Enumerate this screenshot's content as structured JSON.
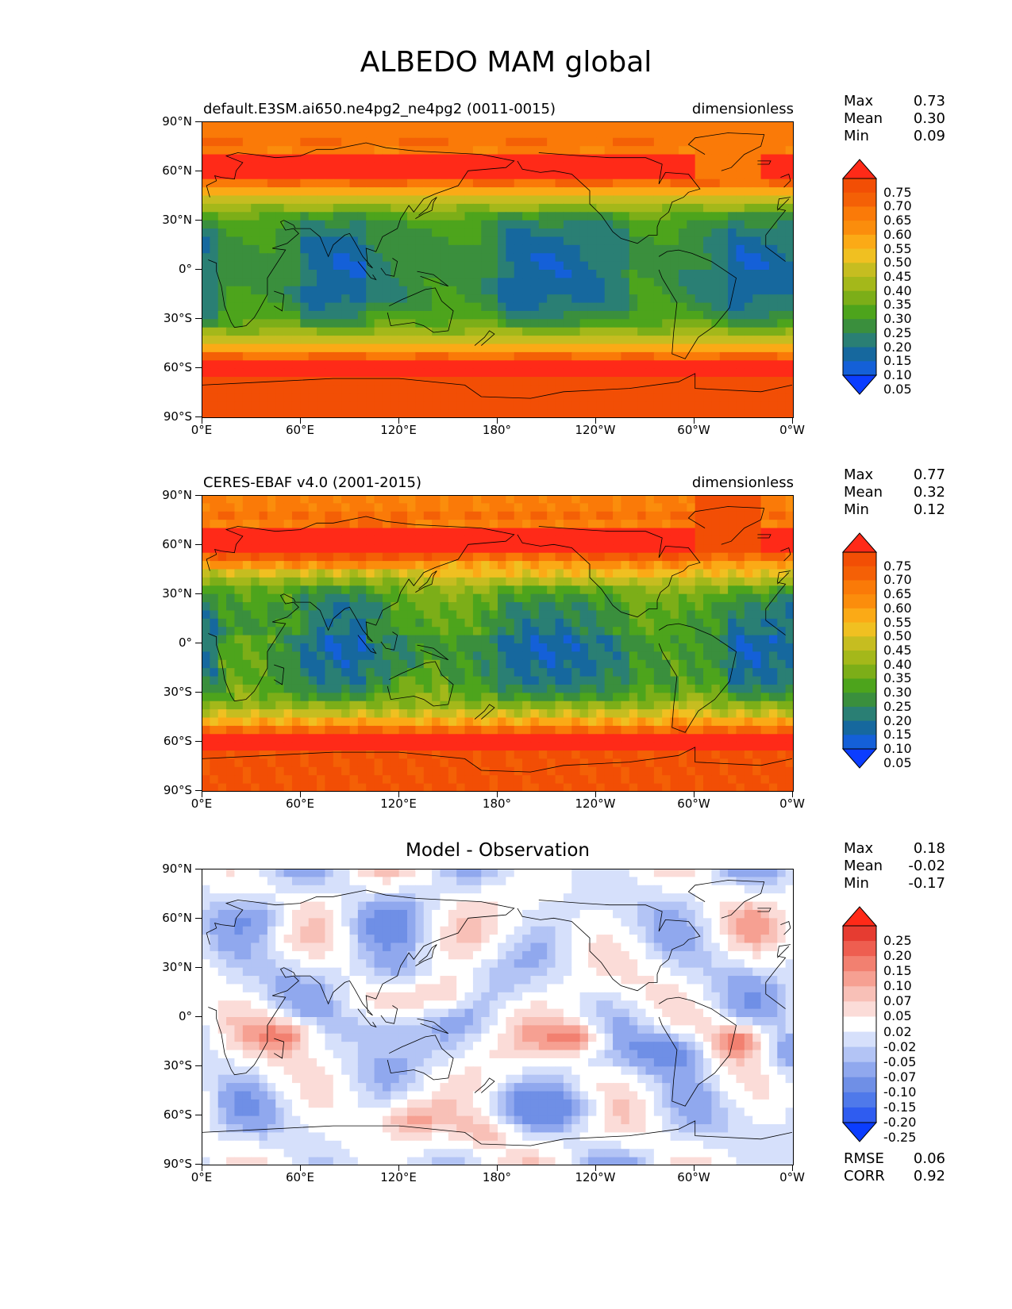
{
  "page": {
    "title": "ALBEDO MAM global"
  },
  "axes": {
    "lat_labels": [
      "90°N",
      "60°N",
      "30°N",
      "0°",
      "30°S",
      "60°S",
      "90°S"
    ],
    "lon_labels": [
      "0°E",
      "60°E",
      "120°E",
      "180°",
      "120°W",
      "60°W",
      "0°W"
    ]
  },
  "colors": {
    "albedo_levels": [
      "#0b3dff",
      "#1460d8",
      "#16689e",
      "#2a7f74",
      "#3a8f3d",
      "#4da41c",
      "#7cae18",
      "#a4b81a",
      "#c6bd20",
      "#f0c021",
      "#fbaa16",
      "#fb8d0c",
      "#fa7a08",
      "#f46006",
      "#f24e05",
      "#ff2a18"
    ],
    "diff_levels": [
      "#0b3dff",
      "#2f5cf0",
      "#4f79ea",
      "#6f8fe6",
      "#90a8ee",
      "#b3c4f5",
      "#d6e0fb",
      "#ffffff",
      "#fbdcd8",
      "#f8c0b7",
      "#f6a092",
      "#f28070",
      "#ee5e50",
      "#e63c31",
      "#ff2a18"
    ],
    "coast": "#000000"
  },
  "panels": [
    {
      "id": "model",
      "left_title": "default.E3SM.ai650.ne4pg2_ne4pg2 (0011-0015)",
      "right_title": "dimensionless",
      "center_title": "",
      "stats": [
        {
          "label": "Max",
          "value": "0.73"
        },
        {
          "label": "Mean",
          "value": "0.30"
        },
        {
          "label": "Min",
          "value": "0.09"
        }
      ],
      "colorbar": {
        "type": "albedo",
        "labels": [
          "0.75",
          "0.70",
          "0.65",
          "0.60",
          "0.55",
          "0.50",
          "0.45",
          "0.40",
          "0.35",
          "0.30",
          "0.25",
          "0.20",
          "0.15",
          "0.10",
          "0.05"
        ]
      }
    },
    {
      "id": "obs",
      "left_title": "CERES-EBAF v4.0 (2001-2015)",
      "right_title": "dimensionless",
      "center_title": "",
      "stats": [
        {
          "label": "Max",
          "value": "0.77"
        },
        {
          "label": "Mean",
          "value": "0.32"
        },
        {
          "label": "Min",
          "value": "0.12"
        }
      ],
      "colorbar": {
        "type": "albedo",
        "labels": [
          "0.75",
          "0.70",
          "0.65",
          "0.60",
          "0.55",
          "0.50",
          "0.45",
          "0.40",
          "0.35",
          "0.30",
          "0.25",
          "0.20",
          "0.15",
          "0.10",
          "0.05"
        ]
      }
    },
    {
      "id": "diff",
      "left_title": "",
      "right_title": "",
      "center_title": "Model - Observation",
      "stats": [
        {
          "label": "Max",
          "value": "0.18"
        },
        {
          "label": "Mean",
          "value": "-0.02"
        },
        {
          "label": "Min",
          "value": "-0.17"
        }
      ],
      "colorbar": {
        "type": "diff",
        "labels": [
          "0.25",
          "0.20",
          "0.15",
          "0.10",
          "0.07",
          "0.05",
          "0.02",
          "-0.02",
          "-0.05",
          "-0.07",
          "-0.10",
          "-0.15",
          "-0.20",
          "-0.25"
        ]
      },
      "footer_stats": [
        {
          "label": "RMSE",
          "value": "0.06"
        },
        {
          "label": "CORR",
          "value": "0.92"
        }
      ]
    }
  ]
}
